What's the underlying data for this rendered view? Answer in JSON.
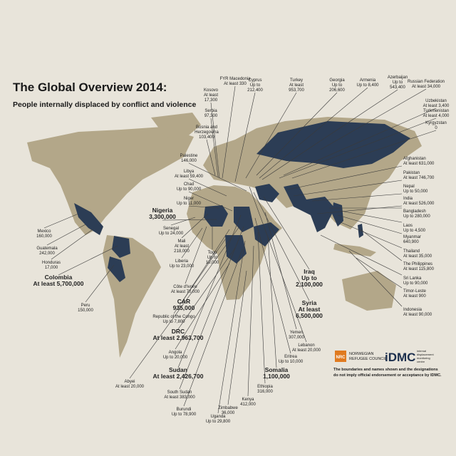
{
  "header": {
    "title": "The Global Overview 2014:",
    "subtitle": "People internally displaced by conflict and violence"
  },
  "labels": [
    {
      "country": "FYR Macedonia",
      "lines": [
        "At least 330"
      ]
    },
    {
      "country": "Kosovo",
      "lines": [
        "At least",
        "17,300"
      ]
    },
    {
      "country": "Serbia",
      "lines": [
        "97,300"
      ]
    },
    {
      "country": "Bosnia and",
      "lines": [
        "Herzegovina",
        "103,400"
      ]
    },
    {
      "country": "Cyprus",
      "lines": [
        "Up to",
        "212,400"
      ]
    },
    {
      "country": "Turkey",
      "lines": [
        "At least",
        "953,700"
      ]
    },
    {
      "country": "Georgia",
      "lines": [
        "Up to",
        "206,600"
      ]
    },
    {
      "country": "Armenia",
      "lines": [
        "Up to 8,400"
      ]
    },
    {
      "country": "Azerbaijan",
      "lines": [
        "Up to",
        "543,400"
      ]
    },
    {
      "country": "Russian Federation",
      "lines": [
        "At least 34,000"
      ]
    },
    {
      "country": "Uzbekistan",
      "lines": [
        "At least 3,400"
      ]
    },
    {
      "country": "Turkmenistan",
      "lines": [
        "At least 4,000"
      ]
    },
    {
      "country": "Kyrgyzstan",
      "lines": [
        "0"
      ]
    },
    {
      "country": "Afghanistan",
      "lines": [
        "At least 631,000"
      ]
    },
    {
      "country": "Pakistan",
      "lines": [
        "At least 746,700"
      ]
    },
    {
      "country": "Nepal",
      "lines": [
        "Up to 50,000"
      ]
    },
    {
      "country": "India",
      "lines": [
        "At least 526,000"
      ]
    },
    {
      "country": "Bangladesh",
      "lines": [
        "Up to 280,000"
      ]
    },
    {
      "country": "Laos",
      "lines": [
        "Up to 4,500"
      ]
    },
    {
      "country": "Myanmar",
      "lines": [
        "640,900"
      ]
    },
    {
      "country": "Thailand",
      "lines": [
        "At least 35,000"
      ]
    },
    {
      "country": "The Philippines",
      "lines": [
        "At least 115,800"
      ]
    },
    {
      "country": "Sri Lanka",
      "lines": [
        "Up to 90,000"
      ]
    },
    {
      "country": "Timor-Leste",
      "lines": [
        "At least 900"
      ]
    },
    {
      "country": "Indonesia",
      "lines": [
        "At least 90,000"
      ]
    },
    {
      "country": "Palestine",
      "lines": [
        "146,000"
      ]
    },
    {
      "country": "Libya",
      "lines": [
        "At least 59,400"
      ]
    },
    {
      "country": "Chad",
      "lines": [
        "Up to 90,000"
      ]
    },
    {
      "country": "Niger",
      "lines": [
        "Up to 11,000"
      ]
    },
    {
      "country": "Nigeria",
      "lines": [
        "3,300,000"
      ]
    },
    {
      "country": "Senegal",
      "lines": [
        "Up to 24,000"
      ]
    },
    {
      "country": "Mali",
      "lines": [
        "At least",
        "218,000"
      ]
    },
    {
      "country": "Liberia",
      "lines": [
        "Up to 23,000"
      ]
    },
    {
      "country": "Togo",
      "lines": [
        "Up to",
        "10,000"
      ]
    },
    {
      "country": "Côte d'Ivoire",
      "lines": [
        "At least 70,000"
      ]
    },
    {
      "country": "CAR",
      "lines": [
        "935,000"
      ]
    },
    {
      "country": "Republic of the Congo",
      "lines": [
        "Up to 7,800"
      ]
    },
    {
      "country": "DRC",
      "lines": [
        "At least 2,963,700"
      ]
    },
    {
      "country": "Angola",
      "lines": [
        "Up to 20,000"
      ]
    },
    {
      "country": "Sudan",
      "lines": [
        "At least 2,426,700"
      ]
    },
    {
      "country": "Abyei",
      "lines": [
        "At least 20,000"
      ]
    },
    {
      "country": "South Sudan",
      "lines": [
        "At least 383,000"
      ]
    },
    {
      "country": "Burundi",
      "lines": [
        "Up to 78,900"
      ]
    },
    {
      "country": "Uganda",
      "lines": [
        "Up to 29,800"
      ]
    },
    {
      "country": "Zimbabwe",
      "lines": [
        "36,000"
      ]
    },
    {
      "country": "Kenya",
      "lines": [
        "412,000"
      ]
    },
    {
      "country": "Ethiopia",
      "lines": [
        "316,000"
      ]
    },
    {
      "country": "Somalia",
      "lines": [
        "1,100,000"
      ]
    },
    {
      "country": "Eritrea",
      "lines": [
        "Up to 10,000"
      ]
    },
    {
      "country": "Lebanon",
      "lines": [
        "At least 20,000"
      ]
    },
    {
      "country": "Yemen",
      "lines": [
        "307,000"
      ]
    },
    {
      "country": "Syria",
      "lines": [
        "At least",
        "6,500,000"
      ]
    },
    {
      "country": "Iraq",
      "lines": [
        "Up to",
        "2,100,000"
      ]
    },
    {
      "country": "Mexico",
      "lines": [
        "160,000"
      ]
    },
    {
      "country": "Guatemala",
      "lines": [
        "242,000"
      ]
    },
    {
      "country": "Honduras",
      "lines": [
        "17,000"
      ]
    },
    {
      "country": "Colombia",
      "lines": [
        "At least 5,700,000"
      ]
    },
    {
      "country": "Peru",
      "lines": [
        "150,000"
      ]
    }
  ],
  "footer": {
    "nrc_badge": "NRC",
    "nrc_name": [
      "NORWEGIAN",
      "REFUGEE COUNCIL"
    ],
    "idmc": "iDMC",
    "idmc_tagline": [
      "internal",
      "displacement",
      "monitoring",
      "centre"
    ],
    "disclaimer": [
      "The boundaries and names shown and the designations",
      "do not imply official endorsement or acceptance by IDMC."
    ]
  }
}
